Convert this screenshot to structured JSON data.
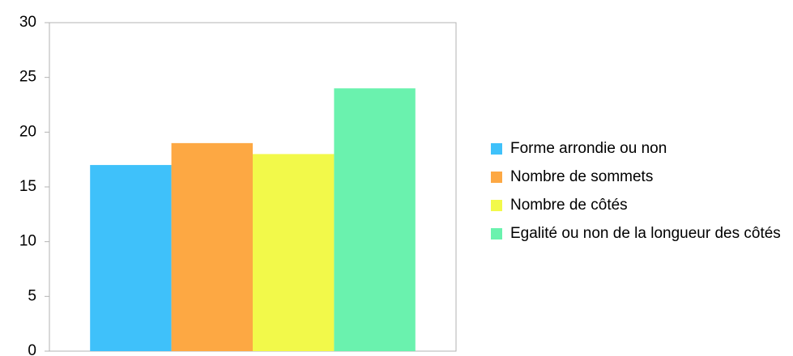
{
  "chart_data": {
    "type": "bar",
    "categories": [
      null
    ],
    "series": [
      {
        "name": "Forme arrondie ou non",
        "color": "#3fc1fa",
        "values": [
          17
        ]
      },
      {
        "name": "Nombre de sommets",
        "color": "#fda843",
        "values": [
          19
        ]
      },
      {
        "name": "Nombre de côtés",
        "color": "#f2f94a",
        "values": [
          18
        ]
      },
      {
        "name": "Egalité ou non de la longueur des côtés",
        "color": "#6af2ae",
        "values": [
          24
        ]
      }
    ],
    "ylim": [
      0,
      30
    ],
    "yticks": [
      0,
      5,
      10,
      15,
      20,
      25,
      30
    ],
    "grid": false,
    "legend": "right"
  }
}
